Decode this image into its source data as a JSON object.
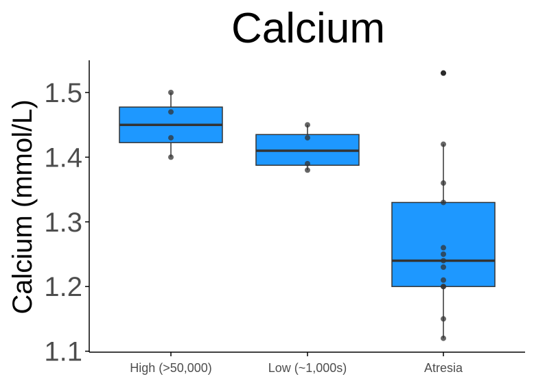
{
  "chart_data": {
    "type": "box",
    "title": "Calcium",
    "xlabel": "",
    "ylabel": "Calcium (mmol/L)",
    "ylim": [
      1.1,
      1.55
    ],
    "yticks": [
      "1.1",
      "1.2",
      "1.3",
      "1.4",
      "1.5"
    ],
    "categories": [
      "High (>50,000)",
      "Low (~1,000s)",
      "Atresia"
    ],
    "box_color": "#1e98ff",
    "box_outline_color": "#333333",
    "point_color": "#333333",
    "axis_color": "#000000",
    "grid": false,
    "legend": false,
    "boxes": [
      {
        "category": "High (>50,000)",
        "whisker_low": 1.4,
        "q1": 1.4225,
        "median": 1.45,
        "q3": 1.4775,
        "whisker_high": 1.5,
        "points": [
          1.5,
          1.47,
          1.43,
          1.4
        ]
      },
      {
        "category": "Low (~1,000s)",
        "whisker_low": 1.38,
        "q1": 1.3875,
        "median": 1.41,
        "q3": 1.435,
        "whisker_high": 1.45,
        "points": [
          1.45,
          1.43,
          1.39,
          1.38
        ]
      },
      {
        "category": "Atresia",
        "whisker_low": 1.12,
        "q1": 1.2,
        "median": 1.24,
        "q3": 1.33,
        "whisker_high": 1.42,
        "outliers": [
          1.53
        ],
        "points": [
          1.53,
          1.42,
          1.36,
          1.33,
          1.26,
          1.25,
          1.24,
          1.23,
          1.21,
          1.2,
          1.2,
          1.15,
          1.12
        ]
      }
    ]
  }
}
